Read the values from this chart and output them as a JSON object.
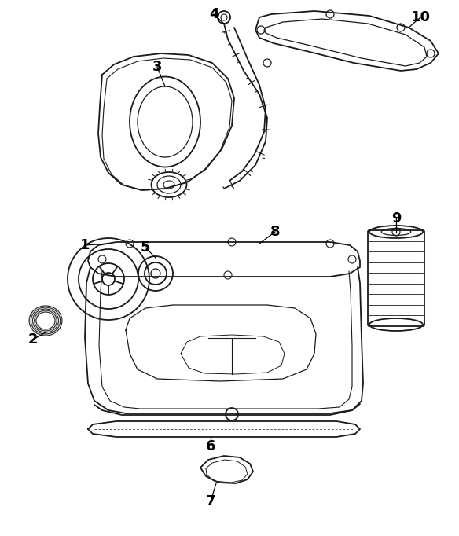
{
  "bg_color": "#ffffff",
  "line_color": "#1a1a1a",
  "figsize": [
    5.84,
    6.82
  ],
  "dpi": 100,
  "xlim": [
    0,
    584
  ],
  "ylim": [
    0,
    682
  ]
}
